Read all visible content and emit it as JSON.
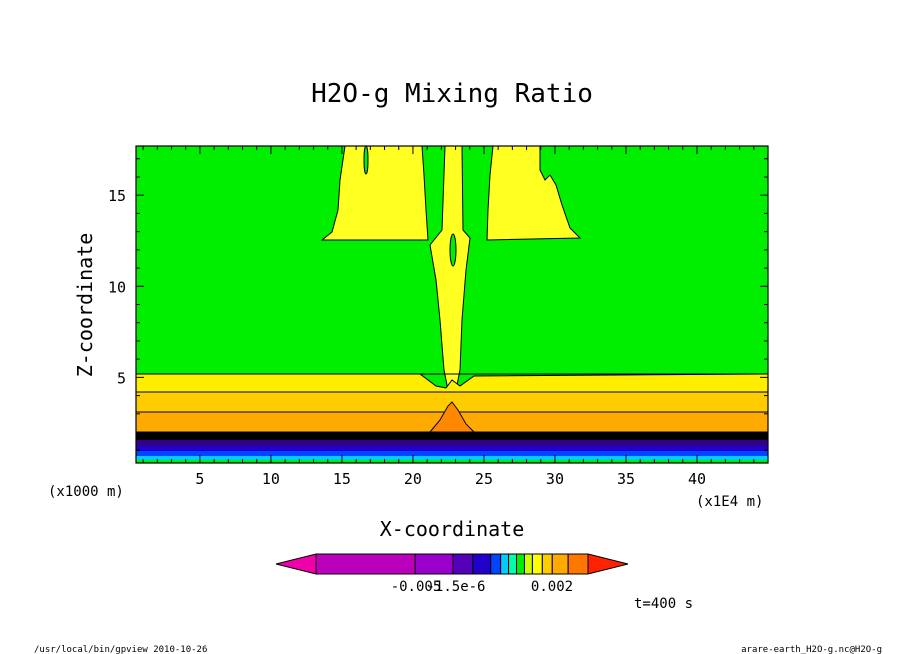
{
  "chart_data": {
    "type": "contour",
    "title": "H2O-g Mixing Ratio",
    "xlabel": "X-coordinate",
    "ylabel": "Z-coordinate",
    "x_unit": "(x1E4 m)",
    "y_unit": "(x1000 m)",
    "xlim": [
      0.5,
      45
    ],
    "ylim": [
      0.3,
      17.7
    ],
    "x_ticks": [
      5,
      10,
      15,
      20,
      25,
      30,
      35,
      40
    ],
    "y_ticks": [
      5,
      10,
      15
    ],
    "x_tick_labels": [
      "5",
      "10",
      "15",
      "20",
      "25",
      "30",
      "35",
      "40"
    ],
    "y_tick_labels": [
      "5",
      "10",
      "15"
    ],
    "regions": [
      {
        "name": "background",
        "color": "#00ee00"
      },
      {
        "name": "upper-left-plume",
        "color": "#ffff22"
      },
      {
        "name": "upper-right-plume",
        "color": "#ffff22"
      },
      {
        "name": "central-column",
        "color": "#ffff22"
      },
      {
        "name": "lower-layer-1",
        "color": "#ffcc00"
      },
      {
        "name": "lower-layer-2",
        "color": "#ffaa00"
      },
      {
        "name": "surface-layers",
        "color": "#220066"
      }
    ],
    "colorbar": {
      "colors": [
        "#ee00aa",
        "#bb00bb",
        "#9900cc",
        "#5500bb",
        "#2200cc",
        "#0044ff",
        "#00ccff",
        "#00ffaa",
        "#00ee00",
        "#ccff00",
        "#ffff00",
        "#ffcc00",
        "#ffaa00",
        "#ff7700",
        "#ff2200"
      ],
      "tick_labels": [
        "-0.005",
        "-1.5e-6",
        "0.002"
      ]
    },
    "annotation": "t=400 s"
  },
  "footer": {
    "left": "/usr/local/bin/gpview  2010-10-26",
    "right": "arare-earth_H2O-g.nc@H2O-g"
  }
}
